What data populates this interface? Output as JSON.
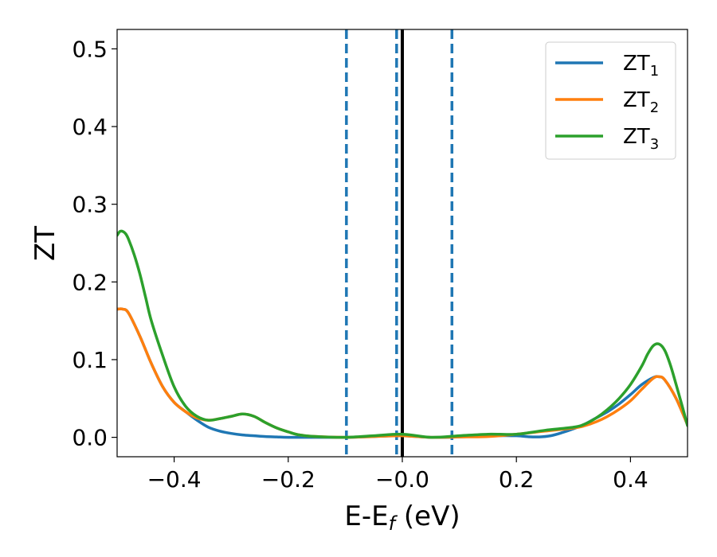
{
  "chart_data": {
    "type": "line",
    "xlabel": "E-E",
    "xlabel_sub": "f",
    "xlabel_unit": " (eV)",
    "ylabel": "ZT",
    "xlim": [
      -0.5,
      0.5
    ],
    "ylim": [
      -0.025,
      0.525
    ],
    "grid": false,
    "legend_position": "top-right",
    "xticks": [
      -0.4,
      -0.2,
      0.0,
      0.2,
      0.4
    ],
    "xtick_labels": [
      "−0.4",
      "−0.2",
      "−0.0",
      "0.2",
      "0.4"
    ],
    "yticks": [
      0.0,
      0.1,
      0.2,
      0.3,
      0.4,
      0.5
    ],
    "ytick_labels": [
      "0.0",
      "0.1",
      "0.2",
      "0.3",
      "0.4",
      "0.5"
    ],
    "vertical_lines": [
      {
        "x": -0.098,
        "style": "dashed",
        "color": "#1f77b4"
      },
      {
        "x": -0.01,
        "style": "dashed",
        "color": "#1f77b4"
      },
      {
        "x": 0.087,
        "style": "dashed",
        "color": "#1f77b4"
      },
      {
        "x": 0.0,
        "style": "solid",
        "color": "#000000"
      }
    ],
    "series": [
      {
        "name": "ZT",
        "name_sub": "1",
        "color": "#1f77b4",
        "x": [
          -0.5,
          -0.49,
          -0.48,
          -0.46,
          -0.44,
          -0.42,
          -0.4,
          -0.38,
          -0.36,
          -0.34,
          -0.32,
          -0.3,
          -0.28,
          -0.26,
          -0.24,
          -0.22,
          -0.2,
          -0.15,
          -0.1,
          -0.05,
          0.0,
          0.05,
          0.1,
          0.15,
          0.2,
          0.22,
          0.24,
          0.26,
          0.28,
          0.3,
          0.32,
          0.34,
          0.36,
          0.38,
          0.4,
          0.42,
          0.44,
          0.45,
          0.46,
          0.48,
          0.5
        ],
        "y": [
          0.165,
          0.165,
          0.16,
          0.13,
          0.095,
          0.065,
          0.045,
          0.033,
          0.022,
          0.013,
          0.008,
          0.005,
          0.003,
          0.002,
          0.001,
          0.0005,
          0.0,
          0.0,
          0.0,
          0.001,
          0.002,
          0.0,
          0.0005,
          0.002,
          0.002,
          0.0008,
          0.0005,
          0.002,
          0.006,
          0.011,
          0.017,
          0.025,
          0.033,
          0.043,
          0.055,
          0.068,
          0.077,
          0.078,
          0.074,
          0.05,
          0.016
        ]
      },
      {
        "name": "ZT",
        "name_sub": "2",
        "color": "#ff7f0e",
        "x": [
          -0.5,
          -0.49,
          -0.48,
          -0.46,
          -0.44,
          -0.42,
          -0.4,
          -0.38,
          -0.36,
          -0.34,
          -0.32,
          -0.3,
          -0.28,
          -0.26,
          -0.24,
          -0.22,
          -0.2,
          -0.18,
          -0.15,
          -0.1,
          -0.05,
          0.0,
          0.05,
          0.1,
          0.15,
          0.2,
          0.25,
          0.3,
          0.32,
          0.34,
          0.36,
          0.38,
          0.4,
          0.42,
          0.44,
          0.45,
          0.46,
          0.48,
          0.5
        ],
        "y": [
          0.165,
          0.165,
          0.16,
          0.13,
          0.095,
          0.065,
          0.045,
          0.033,
          0.025,
          0.022,
          0.024,
          0.027,
          0.03,
          0.027,
          0.019,
          0.012,
          0.007,
          0.003,
          0.001,
          0.0,
          0.001,
          0.002,
          0.0,
          0.0005,
          0.001,
          0.004,
          0.008,
          0.012,
          0.015,
          0.02,
          0.027,
          0.036,
          0.047,
          0.062,
          0.076,
          0.078,
          0.074,
          0.05,
          0.016
        ]
      },
      {
        "name": "ZT",
        "name_sub": "3",
        "color": "#2ca02c",
        "x": [
          -0.5,
          -0.495,
          -0.49,
          -0.485,
          -0.48,
          -0.47,
          -0.46,
          -0.45,
          -0.44,
          -0.42,
          -0.4,
          -0.38,
          -0.36,
          -0.34,
          -0.32,
          -0.3,
          -0.28,
          -0.26,
          -0.24,
          -0.22,
          -0.2,
          -0.18,
          -0.15,
          -0.1,
          -0.05,
          0.0,
          0.05,
          0.1,
          0.15,
          0.2,
          0.25,
          0.3,
          0.32,
          0.34,
          0.36,
          0.38,
          0.4,
          0.42,
          0.43,
          0.44,
          0.45,
          0.46,
          0.47,
          0.48,
          0.49,
          0.5
        ],
        "y": [
          0.26,
          0.265,
          0.265,
          0.262,
          0.255,
          0.235,
          0.21,
          0.18,
          0.15,
          0.105,
          0.065,
          0.04,
          0.027,
          0.022,
          0.024,
          0.027,
          0.03,
          0.027,
          0.019,
          0.012,
          0.007,
          0.003,
          0.001,
          0.0,
          0.002,
          0.004,
          0.0,
          0.002,
          0.004,
          0.004,
          0.009,
          0.013,
          0.017,
          0.025,
          0.036,
          0.05,
          0.068,
          0.092,
          0.107,
          0.118,
          0.12,
          0.112,
          0.093,
          0.068,
          0.042,
          0.015
        ]
      }
    ]
  }
}
